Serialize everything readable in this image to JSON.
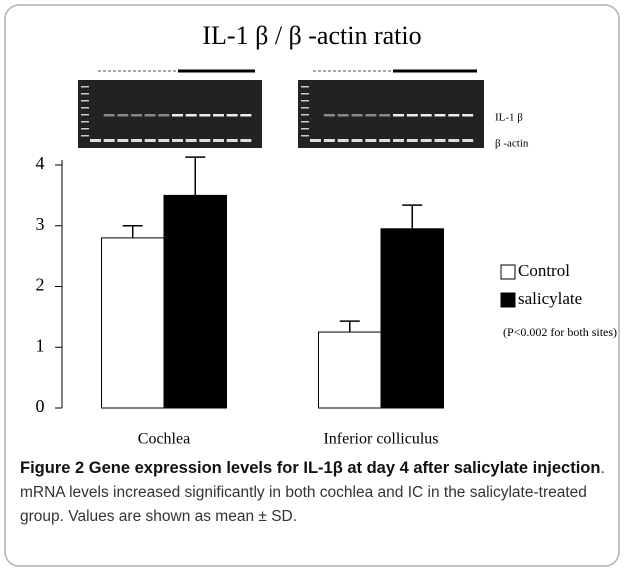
{
  "chart_data": {
    "type": "bar",
    "title": "IL-1 β / β -actin ratio",
    "categories": [
      "Cochlea",
      "Inferior colliculus"
    ],
    "series": [
      {
        "name": "Control",
        "color": "#ffffff",
        "values": [
          2.8,
          1.25
        ],
        "errors": [
          0.2,
          0.18
        ]
      },
      {
        "name": "salicylate",
        "color": "#000000",
        "values": [
          3.5,
          2.95
        ],
        "errors": [
          0.63,
          0.39
        ]
      }
    ],
    "ylim": [
      0,
      4
    ],
    "yticks": [
      0,
      1,
      2,
      3,
      4
    ],
    "legend": "right",
    "annotations": [
      "IL-1 β",
      "β -actin",
      "(P<0.002 for both sites)"
    ]
  },
  "caption": {
    "title": "Figure 2 Gene expression levels for IL-1β at day 4 after salicylate injection",
    "text": ". mRNA levels increased significantly in both cochlea and IC in the salicylate-treated group. Values are shown as mean ± SD."
  }
}
